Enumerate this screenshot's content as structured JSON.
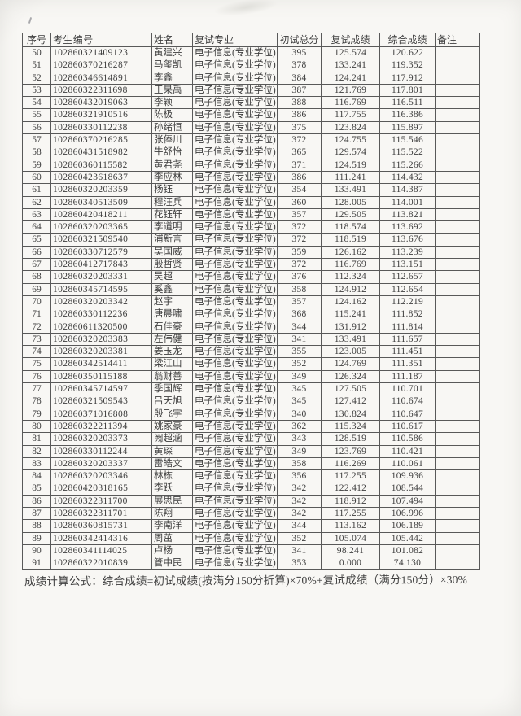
{
  "colors": {
    "paper": "#f8f7f4",
    "ink": "#3d3d3d",
    "border": "#595959"
  },
  "table": {
    "headers": [
      "序号",
      "考生编号",
      "姓名",
      "复试专业",
      "初试总分",
      "复试成绩",
      "综合成绩",
      "备注"
    ],
    "rows": [
      [
        "50",
        "102860321409123",
        "黄建兴",
        "电子信息(专业学位)",
        "395",
        "125.574",
        "120.622",
        ""
      ],
      [
        "51",
        "102860370216287",
        "马玺凯",
        "电子信息(专业学位)",
        "378",
        "133.241",
        "119.352",
        ""
      ],
      [
        "52",
        "102860346614891",
        "李鑫",
        "电子信息(专业学位)",
        "384",
        "124.241",
        "117.912",
        ""
      ],
      [
        "53",
        "102860322311698",
        "王杲禹",
        "电子信息(专业学位)",
        "387",
        "121.769",
        "117.801",
        ""
      ],
      [
        "54",
        "102860432019063",
        "李颖",
        "电子信息(专业学位)",
        "388",
        "116.769",
        "116.511",
        ""
      ],
      [
        "55",
        "102860321910516",
        "陈极",
        "电子信息(专业学位)",
        "386",
        "117.755",
        "116.386",
        ""
      ],
      [
        "56",
        "102860330112238",
        "孙绪恒",
        "电子信息(专业学位)",
        "375",
        "123.824",
        "115.897",
        ""
      ],
      [
        "57",
        "102860370216285",
        "张俸川",
        "电子信息(专业学位)",
        "372",
        "124.755",
        "115.546",
        ""
      ],
      [
        "58",
        "102860431518982",
        "牛舒怡",
        "电子信息(专业学位)",
        "365",
        "129.574",
        "115.522",
        ""
      ],
      [
        "59",
        "102860360115582",
        "黄君尧",
        "电子信息(专业学位)",
        "371",
        "124.519",
        "115.266",
        ""
      ],
      [
        "60",
        "102860423618637",
        "李应林",
        "电子信息(专业学位)",
        "386",
        "111.241",
        "114.432",
        ""
      ],
      [
        "61",
        "102860320203359",
        "杨钰",
        "电子信息(专业学位)",
        "354",
        "133.491",
        "114.387",
        ""
      ],
      [
        "62",
        "102860340513509",
        "程汪兵",
        "电子信息(专业学位)",
        "360",
        "128.005",
        "114.001",
        ""
      ],
      [
        "63",
        "102860420418211",
        "花钰轩",
        "电子信息(专业学位)",
        "357",
        "129.505",
        "113.821",
        ""
      ],
      [
        "64",
        "102860320203365",
        "李道明",
        "电子信息(专业学位)",
        "372",
        "118.574",
        "113.692",
        ""
      ],
      [
        "65",
        "102860321509540",
        "浦新言",
        "电子信息(专业学位)",
        "372",
        "118.519",
        "113.676",
        ""
      ],
      [
        "66",
        "102860330712579",
        "吴国威",
        "电子信息(专业学位)",
        "359",
        "126.162",
        "113.239",
        ""
      ],
      [
        "67",
        "102860412717843",
        "殷哲贤",
        "电子信息(专业学位)",
        "372",
        "116.769",
        "113.151",
        ""
      ],
      [
        "68",
        "102860320203331",
        "吴超",
        "电子信息(专业学位)",
        "376",
        "112.324",
        "112.657",
        ""
      ],
      [
        "69",
        "102860345714595",
        "奚鑫",
        "电子信息(专业学位)",
        "358",
        "124.912",
        "112.654",
        ""
      ],
      [
        "70",
        "102860320203342",
        "赵宇",
        "电子信息(专业学位)",
        "357",
        "124.162",
        "112.219",
        ""
      ],
      [
        "71",
        "102860330112236",
        "唐晨啸",
        "电子信息(专业学位)",
        "368",
        "115.241",
        "111.852",
        ""
      ],
      [
        "72",
        "102860611320500",
        "石佳豪",
        "电子信息(专业学位)",
        "344",
        "131.912",
        "111.814",
        ""
      ],
      [
        "73",
        "102860320203383",
        "左伟健",
        "电子信息(专业学位)",
        "341",
        "133.491",
        "111.657",
        ""
      ],
      [
        "74",
        "102860320203381",
        "姜玉龙",
        "电子信息(专业学位)",
        "355",
        "123.005",
        "111.451",
        ""
      ],
      [
        "75",
        "102860342514411",
        "梁江山",
        "电子信息(专业学位)",
        "352",
        "124.769",
        "111.351",
        ""
      ],
      [
        "76",
        "102860350115188",
        "翁财善",
        "电子信息(专业学位)",
        "349",
        "126.324",
        "111.187",
        ""
      ],
      [
        "77",
        "102860345714597",
        "季国辉",
        "电子信息(专业学位)",
        "345",
        "127.505",
        "110.701",
        ""
      ],
      [
        "78",
        "102860321509543",
        "吕天旭",
        "电子信息(专业学位)",
        "345",
        "127.412",
        "110.674",
        ""
      ],
      [
        "79",
        "102860371016808",
        "殷飞宇",
        "电子信息(专业学位)",
        "340",
        "130.824",
        "110.647",
        ""
      ],
      [
        "80",
        "102860322211394",
        "姚家豪",
        "电子信息(专业学位)",
        "362",
        "115.324",
        "110.617",
        ""
      ],
      [
        "81",
        "102860320203373",
        "阙超涵",
        "电子信息(专业学位)",
        "343",
        "128.519",
        "110.586",
        ""
      ],
      [
        "82",
        "102860330112244",
        "黄琛",
        "电子信息(专业学位)",
        "349",
        "123.769",
        "110.421",
        ""
      ],
      [
        "83",
        "102860320203337",
        "雷皓文",
        "电子信息(专业学位)",
        "358",
        "116.269",
        "110.061",
        ""
      ],
      [
        "84",
        "102860320203346",
        "林栋",
        "电子信息(专业学位)",
        "356",
        "117.255",
        "109.936",
        ""
      ],
      [
        "85",
        "102860420318165",
        "李跃",
        "电子信息(专业学位)",
        "342",
        "122.412",
        "108.544",
        ""
      ],
      [
        "86",
        "102860322311700",
        "展思民",
        "电子信息(专业学位)",
        "342",
        "118.912",
        "107.494",
        ""
      ],
      [
        "87",
        "102860322311701",
        "陈翔",
        "电子信息(专业学位)",
        "342",
        "117.255",
        "106.996",
        ""
      ],
      [
        "88",
        "102860360815731",
        "李南洋",
        "电子信息(专业学位)",
        "344",
        "113.162",
        "106.189",
        ""
      ],
      [
        "89",
        "102860342414316",
        "周茁",
        "电子信息(专业学位)",
        "352",
        "105.074",
        "105.442",
        ""
      ],
      [
        "90",
        "102860341114025",
        "卢杨",
        "电子信息(专业学位)",
        "341",
        "98.241",
        "101.082",
        ""
      ],
      [
        "91",
        "102860322010839",
        "管中民",
        "电子信息(专业学位)",
        "353",
        "0.000",
        "74.130",
        ""
      ]
    ]
  },
  "footer": {
    "formula": "成绩计算公式：综合成绩=初试成绩(按满分150分折算)×70%+复试成绩（满分150分）×30%"
  }
}
